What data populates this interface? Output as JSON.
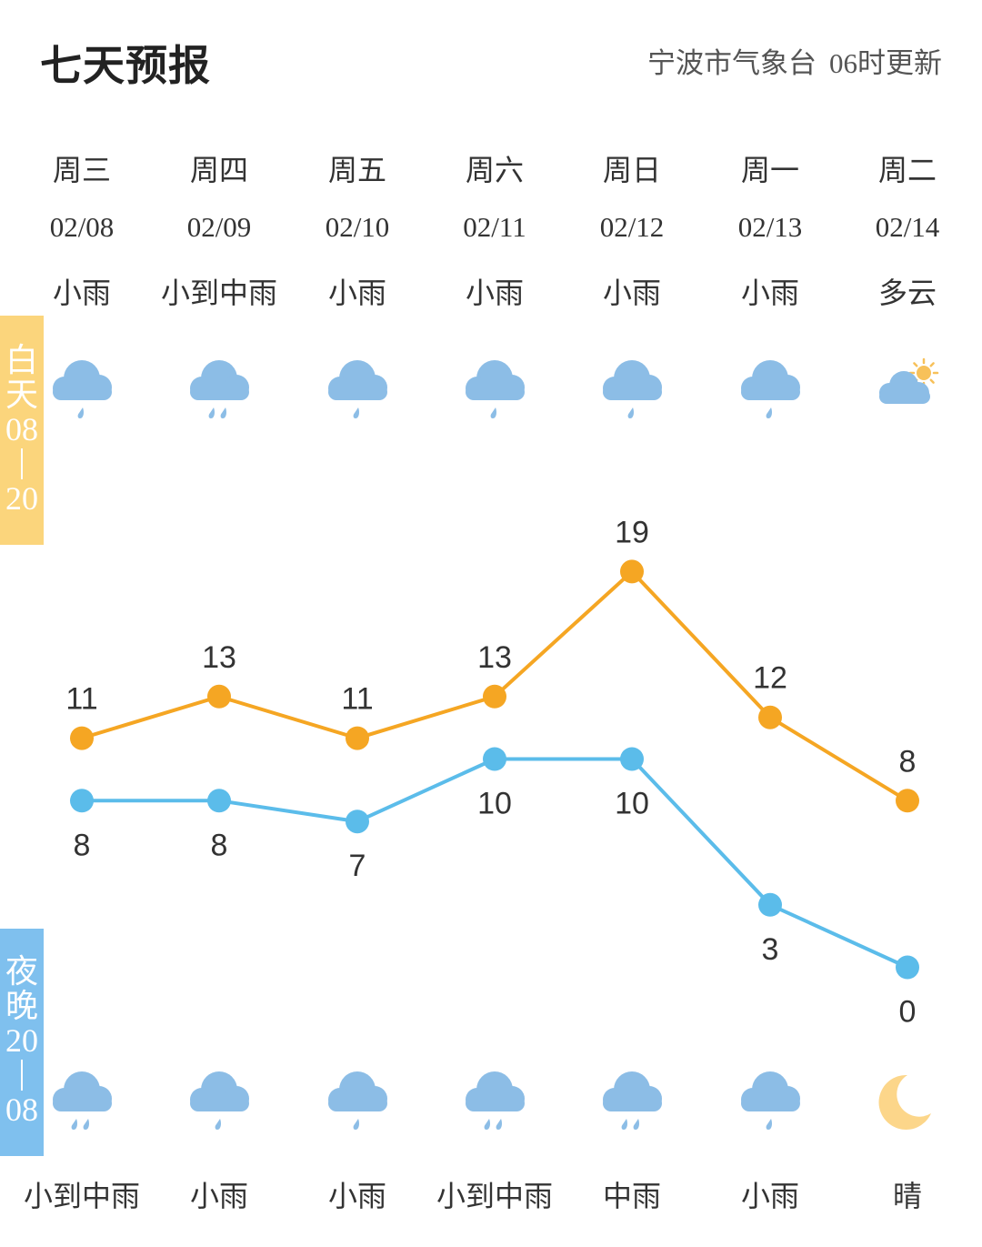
{
  "header": {
    "title": "七天预报",
    "source": "宁波市气象台",
    "update_time": "06时更新"
  },
  "side_labels": {
    "day_chars": [
      "白",
      "天"
    ],
    "day_start": "08",
    "day_end": "20",
    "night_chars": [
      "夜",
      "晚"
    ],
    "night_start": "20",
    "night_end": "08"
  },
  "days": [
    {
      "dow": "周三",
      "date": "02/08",
      "weather_day": "小雨",
      "icon_day": "light-rain-icon",
      "weather_night": "小到中雨",
      "icon_night": "light-moderate-rain-icon"
    },
    {
      "dow": "周四",
      "date": "02/09",
      "weather_day": "小到中雨",
      "icon_day": "light-moderate-rain-icon",
      "weather_night": "小雨",
      "icon_night": "light-rain-icon"
    },
    {
      "dow": "周五",
      "date": "02/10",
      "weather_day": "小雨",
      "icon_day": "light-rain-icon",
      "weather_night": "小雨",
      "icon_night": "light-rain-icon"
    },
    {
      "dow": "周六",
      "date": "02/11",
      "weather_day": "小雨",
      "icon_day": "light-rain-icon",
      "weather_night": "小到中雨",
      "icon_night": "light-moderate-rain-icon"
    },
    {
      "dow": "周日",
      "date": "02/12",
      "weather_day": "小雨",
      "icon_day": "light-rain-icon",
      "weather_night": "中雨",
      "icon_night": "moderate-rain-icon"
    },
    {
      "dow": "周一",
      "date": "02/13",
      "weather_day": "小雨",
      "icon_day": "light-rain-icon",
      "weather_night": "小雨",
      "icon_night": "light-rain-icon"
    },
    {
      "dow": "周二",
      "date": "02/14",
      "weather_day": "多云",
      "icon_day": "partly-cloudy-icon",
      "weather_night": "晴",
      "icon_night": "moon-icon"
    }
  ],
  "colors": {
    "high": "#f5a623",
    "low": "#5bbcea",
    "cloud": "#8cbde6",
    "moon": "#fcd68a",
    "sun": "#f7c15a",
    "day_band": "#fbd57c",
    "night_band": "#7fc0ee"
  },
  "chart_data": {
    "type": "line",
    "categories": [
      "02/08",
      "02/09",
      "02/10",
      "02/11",
      "02/12",
      "02/13",
      "02/14"
    ],
    "series": [
      {
        "values": [
          11,
          13,
          11,
          13,
          19,
          12,
          8
        ]
      },
      {
        "values": [
          8,
          8,
          7,
          10,
          10,
          3,
          0
        ]
      }
    ],
    "data_labels": true,
    "grid": false
  }
}
